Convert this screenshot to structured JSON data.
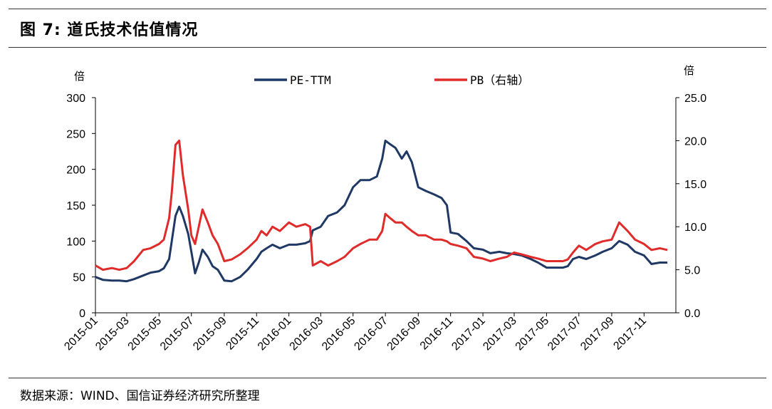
{
  "header": {
    "title": "图 7:  道氏技术估值情况"
  },
  "footer": {
    "source": "数据来源：WIND、国信证券经济研究所整理"
  },
  "chart_data": {
    "type": "line",
    "y_left_unit": "倍",
    "y_right_unit": "倍",
    "y_left_range": [
      0,
      300
    ],
    "y_left_ticks": [
      "0",
      "50",
      "100",
      "150",
      "200",
      "250",
      "300"
    ],
    "y_right_range": [
      0,
      25
    ],
    "y_right_ticks": [
      "0.0",
      "5.0",
      "10.0",
      "15.0",
      "20.0",
      "25.0"
    ],
    "x_range": [
      "2015-01",
      "2017-12"
    ],
    "x_ticks": [
      "2015-01",
      "2015-03",
      "2015-05",
      "2015-07",
      "2015-09",
      "2015-11",
      "2016-01",
      "2016-03",
      "2016-05",
      "2016-07",
      "2016-09",
      "2016-11",
      "2017-01",
      "2017-03",
      "2017-05",
      "2017-07",
      "2017-09",
      "2017-11"
    ],
    "legend_position": "top-center",
    "grid": false,
    "series": [
      {
        "name": "PE-TTM",
        "axis": "left",
        "color": "#1f3864",
        "points": [
          [
            "2015-01",
            50
          ],
          [
            "2015-01-15",
            46
          ],
          [
            "2015-02",
            45
          ],
          [
            "2015-02-15",
            45
          ],
          [
            "2015-03",
            44
          ],
          [
            "2015-03-15",
            47
          ],
          [
            "2015-04",
            52
          ],
          [
            "2015-04-15",
            56
          ],
          [
            "2015-05",
            58
          ],
          [
            "2015-05-10",
            62
          ],
          [
            "2015-05-20",
            75
          ],
          [
            "2015-05-25",
            100
          ],
          [
            "2015-06-01",
            135
          ],
          [
            "2015-06-08",
            148
          ],
          [
            "2015-06-15",
            135
          ],
          [
            "2015-06-25",
            110
          ],
          [
            "2015-07-01",
            85
          ],
          [
            "2015-07-08",
            55
          ],
          [
            "2015-07-15",
            70
          ],
          [
            "2015-07-22",
            88
          ],
          [
            "2015-08-01",
            78
          ],
          [
            "2015-08-10",
            65
          ],
          [
            "2015-08-20",
            60
          ],
          [
            "2015-09-01",
            45
          ],
          [
            "2015-09-15",
            44
          ],
          [
            "2015-10-01",
            50
          ],
          [
            "2015-10-15",
            60
          ],
          [
            "2015-11-01",
            75
          ],
          [
            "2015-11-10",
            85
          ],
          [
            "2015-11-20",
            90
          ],
          [
            "2015-12-01",
            95
          ],
          [
            "2015-12-15",
            90
          ],
          [
            "2016-01-01",
            95
          ],
          [
            "2016-01-15",
            95
          ],
          [
            "2016-02-01",
            97
          ],
          [
            "2016-02-10",
            100
          ],
          [
            "2016-02-15",
            115
          ],
          [
            "2016-03-01",
            120
          ],
          [
            "2016-03-15",
            135
          ],
          [
            "2016-04-01",
            140
          ],
          [
            "2016-04-15",
            150
          ],
          [
            "2016-05-01",
            175
          ],
          [
            "2016-05-15",
            185
          ],
          [
            "2016-06-01",
            185
          ],
          [
            "2016-06-15",
            190
          ],
          [
            "2016-06-25",
            215
          ],
          [
            "2016-07-01",
            240
          ],
          [
            "2016-07-10",
            235
          ],
          [
            "2016-07-20",
            230
          ],
          [
            "2016-08-01",
            215
          ],
          [
            "2016-08-10",
            225
          ],
          [
            "2016-08-20",
            210
          ],
          [
            "2016-09-01",
            175
          ],
          [
            "2016-09-15",
            170
          ],
          [
            "2016-10-01",
            165
          ],
          [
            "2016-10-15",
            160
          ],
          [
            "2016-10-25",
            150
          ],
          [
            "2016-11-01",
            112
          ],
          [
            "2016-11-15",
            110
          ],
          [
            "2016-12-01",
            100
          ],
          [
            "2016-12-15",
            90
          ],
          [
            "2017-01-01",
            88
          ],
          [
            "2017-01-15",
            83
          ],
          [
            "2017-02-01",
            85
          ],
          [
            "2017-02-15",
            83
          ],
          [
            "2017-03-01",
            82
          ],
          [
            "2017-03-15",
            80
          ],
          [
            "2017-04-01",
            75
          ],
          [
            "2017-04-15",
            70
          ],
          [
            "2017-05-01",
            63
          ],
          [
            "2017-05-15",
            63
          ],
          [
            "2017-06-01",
            63
          ],
          [
            "2017-06-10",
            65
          ],
          [
            "2017-06-20",
            75
          ],
          [
            "2017-07-01",
            78
          ],
          [
            "2017-07-15",
            75
          ],
          [
            "2017-08-01",
            80
          ],
          [
            "2017-08-15",
            85
          ],
          [
            "2017-09-01",
            90
          ],
          [
            "2017-09-15",
            100
          ],
          [
            "2017-10-01",
            95
          ],
          [
            "2017-10-15",
            85
          ],
          [
            "2017-11-01",
            80
          ],
          [
            "2017-11-15",
            68
          ],
          [
            "2017-12-01",
            70
          ],
          [
            "2017-12-15",
            70
          ]
        ]
      },
      {
        "name": "PB（右轴）",
        "axis": "right",
        "color": "#e02b2b",
        "points": [
          [
            "2015-01",
            5.5
          ],
          [
            "2015-01-15",
            5.0
          ],
          [
            "2015-02",
            5.2
          ],
          [
            "2015-02-15",
            5.0
          ],
          [
            "2015-03",
            5.2
          ],
          [
            "2015-03-15",
            6.0
          ],
          [
            "2015-04",
            7.3
          ],
          [
            "2015-04-15",
            7.5
          ],
          [
            "2015-05",
            8.0
          ],
          [
            "2015-05-10",
            8.5
          ],
          [
            "2015-05-20",
            11.0
          ],
          [
            "2015-05-25",
            14.0
          ],
          [
            "2015-06-01",
            19.5
          ],
          [
            "2015-06-08",
            20.0
          ],
          [
            "2015-06-15",
            16.0
          ],
          [
            "2015-06-25",
            12.0
          ],
          [
            "2015-07-01",
            9.0
          ],
          [
            "2015-07-08",
            8.0
          ],
          [
            "2015-07-15",
            10.0
          ],
          [
            "2015-07-22",
            12.0
          ],
          [
            "2015-08-01",
            10.5
          ],
          [
            "2015-08-10",
            9.0
          ],
          [
            "2015-08-20",
            8.0
          ],
          [
            "2015-09-01",
            6.0
          ],
          [
            "2015-09-15",
            6.2
          ],
          [
            "2015-10-01",
            6.8
          ],
          [
            "2015-10-15",
            7.5
          ],
          [
            "2015-11-01",
            8.5
          ],
          [
            "2015-11-10",
            9.5
          ],
          [
            "2015-11-20",
            9.0
          ],
          [
            "2015-12-01",
            10.0
          ],
          [
            "2015-12-15",
            9.5
          ],
          [
            "2016-01-01",
            10.5
          ],
          [
            "2016-01-15",
            10.0
          ],
          [
            "2016-02-01",
            10.3
          ],
          [
            "2016-02-10",
            10.0
          ],
          [
            "2016-02-15",
            5.5
          ],
          [
            "2016-03-01",
            6.0
          ],
          [
            "2016-03-15",
            5.5
          ],
          [
            "2016-04-01",
            6.0
          ],
          [
            "2016-04-15",
            6.5
          ],
          [
            "2016-05-01",
            7.5
          ],
          [
            "2016-05-15",
            8.0
          ],
          [
            "2016-06-01",
            8.5
          ],
          [
            "2016-06-15",
            8.5
          ],
          [
            "2016-06-25",
            9.5
          ],
          [
            "2016-07-01",
            11.5
          ],
          [
            "2016-07-10",
            11.0
          ],
          [
            "2016-07-20",
            10.5
          ],
          [
            "2016-08-01",
            10.5
          ],
          [
            "2016-08-10",
            10.0
          ],
          [
            "2016-08-20",
            9.5
          ],
          [
            "2016-09-01",
            9.0
          ],
          [
            "2016-09-15",
            9.0
          ],
          [
            "2016-10-01",
            8.5
          ],
          [
            "2016-10-15",
            8.5
          ],
          [
            "2016-10-25",
            8.3
          ],
          [
            "2016-11-01",
            8.0
          ],
          [
            "2016-11-15",
            7.8
          ],
          [
            "2016-12-01",
            7.5
          ],
          [
            "2016-12-15",
            6.5
          ],
          [
            "2017-01-01",
            6.3
          ],
          [
            "2017-01-15",
            6.0
          ],
          [
            "2017-02-01",
            6.3
          ],
          [
            "2017-02-15",
            6.5
          ],
          [
            "2017-03-01",
            7.0
          ],
          [
            "2017-03-15",
            6.8
          ],
          [
            "2017-04-01",
            6.5
          ],
          [
            "2017-04-15",
            6.3
          ],
          [
            "2017-05-01",
            6.0
          ],
          [
            "2017-05-15",
            6.0
          ],
          [
            "2017-06-01",
            6.0
          ],
          [
            "2017-06-10",
            6.2
          ],
          [
            "2017-06-20",
            7.0
          ],
          [
            "2017-07-01",
            7.8
          ],
          [
            "2017-07-15",
            7.3
          ],
          [
            "2017-08-01",
            8.0
          ],
          [
            "2017-08-15",
            8.3
          ],
          [
            "2017-09-01",
            8.5
          ],
          [
            "2017-09-15",
            10.5
          ],
          [
            "2017-10-01",
            9.5
          ],
          [
            "2017-10-15",
            8.5
          ],
          [
            "2017-11-01",
            8.0
          ],
          [
            "2017-11-15",
            7.3
          ],
          [
            "2017-12-01",
            7.5
          ],
          [
            "2017-12-15",
            7.3
          ]
        ]
      }
    ]
  }
}
